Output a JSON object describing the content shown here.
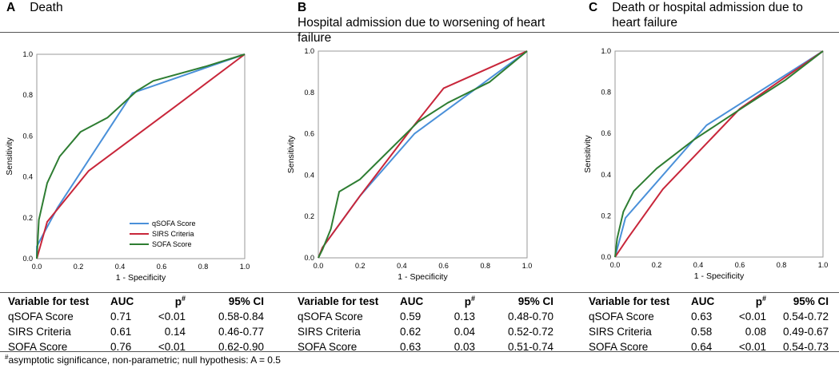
{
  "chart_data": [
    {
      "type": "line",
      "panel_label": "A",
      "title": "Death",
      "xlabel": "1 - Specificity",
      "ylabel": "Sensitivity",
      "xlim": [
        0,
        1
      ],
      "ylim": [
        0,
        1
      ],
      "x_ticks": [
        "0.0",
        "0.2",
        "0.4",
        "0.6",
        "0.8",
        "1.0"
      ],
      "y_ticks": [
        "0.0",
        "0.2",
        "0.4",
        "0.6",
        "0.8",
        "1.0"
      ],
      "legend": [
        "qSOFA Score",
        "SIRS Criteria",
        "SOFA Score"
      ],
      "series": [
        {
          "name": "qSOFA Score",
          "color": "#4a90d9",
          "x": [
            0,
            0,
            0.1,
            0.46,
            1.0
          ],
          "y": [
            0,
            0.06,
            0.25,
            0.81,
            1.0
          ]
        },
        {
          "name": "SIRS Criteria",
          "color": "#c8263a",
          "x": [
            0,
            0.05,
            0.25,
            0.66,
            1.0
          ],
          "y": [
            0,
            0.18,
            0.43,
            0.74,
            1.0
          ]
        },
        {
          "name": "SOFA Score",
          "color": "#2e7d32",
          "x": [
            0,
            0.01,
            0.05,
            0.11,
            0.21,
            0.34,
            0.48,
            0.56,
            0.81,
            1.0
          ],
          "y": [
            0,
            0.19,
            0.37,
            0.5,
            0.62,
            0.69,
            0.82,
            0.87,
            0.94,
            1.0
          ]
        }
      ]
    },
    {
      "type": "line",
      "panel_label": "B",
      "title": "Hospital admission due to worsening of heart failure",
      "xlabel": "1 - Specificity",
      "ylabel": "Sensitivity",
      "xlim": [
        0,
        1
      ],
      "ylim": [
        0,
        1
      ],
      "x_ticks": [
        "0.0",
        "0.2",
        "0.4",
        "0.6",
        "0.8",
        "1.0"
      ],
      "y_ticks": [
        "0.0",
        "0.2",
        "0.4",
        "0.6",
        "0.8",
        "1.0"
      ],
      "series": [
        {
          "name": "qSOFA Score",
          "color": "#4a90d9",
          "x": [
            0,
            0.02,
            0.2,
            0.46,
            1.0
          ],
          "y": [
            0,
            0.05,
            0.3,
            0.6,
            1.0
          ]
        },
        {
          "name": "SIRS Criteria",
          "color": "#c8263a",
          "x": [
            0,
            0.02,
            0.2,
            0.45,
            0.6,
            1.0
          ],
          "y": [
            0,
            0.05,
            0.3,
            0.63,
            0.82,
            1.0
          ]
        },
        {
          "name": "SOFA Score",
          "color": "#2e7d32",
          "x": [
            0,
            0.02,
            0.06,
            0.1,
            0.2,
            0.32,
            0.48,
            0.62,
            0.82,
            1.0
          ],
          "y": [
            0,
            0.04,
            0.14,
            0.32,
            0.38,
            0.5,
            0.66,
            0.75,
            0.85,
            1.0
          ]
        }
      ]
    },
    {
      "type": "line",
      "panel_label": "C",
      "title": "Death or hospital admission due to heart failure",
      "xlabel": "1 - Specificity",
      "ylabel": "Sensitivity",
      "xlim": [
        0,
        1
      ],
      "ylim": [
        0,
        1
      ],
      "x_ticks": [
        "0.0",
        "0.2",
        "0.4",
        "0.6",
        "0.8",
        "1.0"
      ],
      "y_ticks": [
        "0.0",
        "0.2",
        "0.4",
        "0.6",
        "0.8",
        "1.0"
      ],
      "series": [
        {
          "name": "qSOFA Score",
          "color": "#4a90d9",
          "x": [
            0,
            0.05,
            0.44,
            1.0
          ],
          "y": [
            0,
            0.19,
            0.64,
            1.0
          ]
        },
        {
          "name": "SIRS Criteria",
          "color": "#c8263a",
          "x": [
            0,
            0.06,
            0.23,
            0.6,
            1.0
          ],
          "y": [
            0,
            0.09,
            0.33,
            0.72,
            1.0
          ]
        },
        {
          "name": "SOFA Score",
          "color": "#2e7d32",
          "x": [
            0,
            0.01,
            0.04,
            0.09,
            0.2,
            0.38,
            0.62,
            0.82,
            1.0
          ],
          "y": [
            0,
            0.09,
            0.22,
            0.32,
            0.43,
            0.57,
            0.73,
            0.86,
            1.0
          ]
        }
      ]
    }
  ],
  "tables": [
    {
      "headers": [
        "Variable for test",
        "AUC",
        "p",
        "95% CI"
      ],
      "p_superscript": "#",
      "rows": [
        [
          "qSOFA Score",
          "0.71",
          "<0.01",
          "0.58-0.84"
        ],
        [
          "SIRS Criteria",
          "0.61",
          "0.14",
          "0.46-0.77"
        ],
        [
          "SOFA Score",
          "0.76",
          "<0.01",
          "0.62-0.90"
        ]
      ]
    },
    {
      "headers": [
        "Variable for test",
        "AUC",
        "p",
        "95% CI"
      ],
      "p_superscript": "#",
      "rows": [
        [
          "qSOFA Score",
          "0.59",
          "0.13",
          "0.48-0.70"
        ],
        [
          "SIRS Criteria",
          "0.62",
          "0.04",
          "0.52-0.72"
        ],
        [
          "SOFA Score",
          "0.63",
          "0.03",
          "0.51-0.74"
        ]
      ]
    },
    {
      "headers": [
        "Variable for test",
        "AUC",
        "p",
        "95% CI"
      ],
      "p_superscript": "#",
      "rows": [
        [
          "qSOFA Score",
          "0.63",
          "<0.01",
          "0.54-0.72"
        ],
        [
          "SIRS Criteria",
          "0.58",
          "0.08",
          "0.49-0.67"
        ],
        [
          "SOFA Score",
          "0.64",
          "<0.01",
          "0.54-0.73"
        ]
      ]
    }
  ],
  "footnote": {
    "marker": "#",
    "text": "asymptotic significance, non-parametric; null hypothesis: A = 0.5"
  }
}
